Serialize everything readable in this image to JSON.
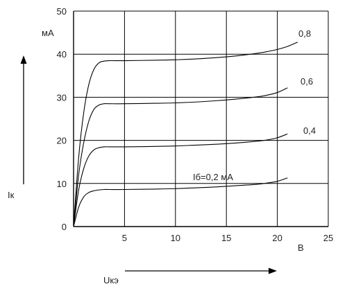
{
  "chart_data": {
    "type": "line",
    "x_unit": "В",
    "y_unit": "мА",
    "x_axis_name": "Uкэ",
    "y_axis_name": "Iк",
    "xlim": [
      0,
      25
    ],
    "ylim": [
      0,
      50
    ],
    "x_ticks": [
      "5",
      "10",
      "15",
      "20",
      "25"
    ],
    "y_ticks": [
      "0",
      "10",
      "20",
      "30",
      "40",
      "50"
    ],
    "grid": true,
    "colors": {
      "grid": "#000000",
      "curve": "#000000"
    },
    "series": [
      {
        "name": "Iб=0,2 мА",
        "x": [
          0,
          0.5,
          1,
          1.5,
          2,
          2.5,
          3,
          3.5,
          5,
          8,
          10,
          12,
          14,
          16,
          18,
          19,
          20,
          21
        ],
        "y": [
          0,
          4.5,
          6.9,
          7.9,
          8.3,
          8.5,
          8.6,
          8.6,
          8.6,
          8.7,
          8.8,
          9.0,
          9.2,
          9.5,
          9.8,
          10.1,
          10.5,
          11.3
        ]
      },
      {
        "name": "0,4",
        "x": [
          0,
          0.5,
          1,
          1.5,
          2,
          2.5,
          3,
          3.5,
          5,
          8,
          10,
          12,
          14,
          16,
          18,
          19,
          20,
          21
        ],
        "y": [
          0,
          8.5,
          13.5,
          16.4,
          17.8,
          18.3,
          18.5,
          18.5,
          18.5,
          18.6,
          18.7,
          18.9,
          19.1,
          19.4,
          19.8,
          20.1,
          20.6,
          21.5
        ]
      },
      {
        "name": "0,6",
        "x": [
          0,
          0.5,
          1,
          1.5,
          2,
          2.5,
          3,
          3.5,
          5,
          8,
          10,
          12,
          14,
          16,
          18,
          19,
          20,
          21
        ],
        "y": [
          0,
          12,
          19.5,
          24.5,
          27.2,
          28.2,
          28.5,
          28.5,
          28.5,
          28.6,
          28.7,
          28.9,
          29.2,
          29.6,
          30.1,
          30.5,
          31.1,
          32.2
        ]
      },
      {
        "name": "0,8",
        "x": [
          0,
          0.5,
          1,
          1.5,
          2,
          2.5,
          3,
          3.5,
          5,
          8,
          10,
          12,
          14,
          16,
          18,
          19,
          20,
          21,
          22
        ],
        "y": [
          0,
          16,
          26.5,
          33,
          36.5,
          38,
          38.4,
          38.5,
          38.5,
          38.6,
          38.7,
          38.9,
          39.2,
          39.6,
          40.2,
          40.6,
          41.1,
          41.8,
          42.8
        ]
      }
    ]
  }
}
